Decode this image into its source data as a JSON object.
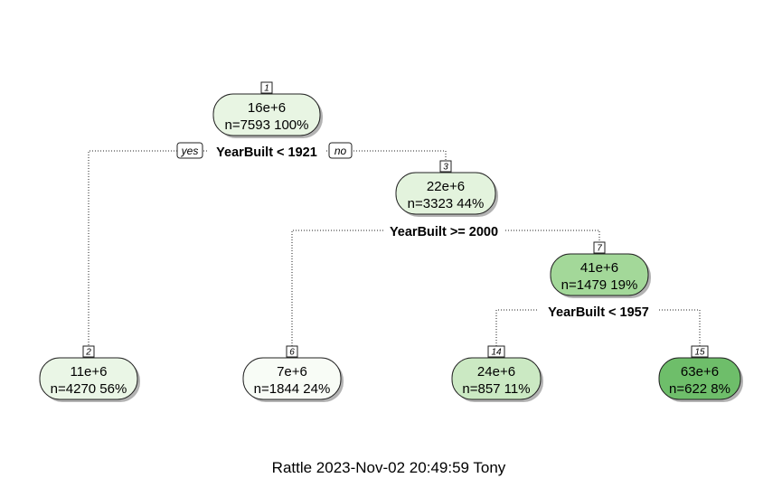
{
  "tree": {
    "nodes": [
      {
        "id": "1",
        "value": "16e+6",
        "n": "n=7593",
        "pct": "100%",
        "fill": "#e8f5e3"
      },
      {
        "id": "3",
        "value": "22e+6",
        "n": "n=3323",
        "pct": "44%",
        "fill": "#e3f3dd"
      },
      {
        "id": "7",
        "value": "41e+6",
        "n": "n=1479",
        "pct": "19%",
        "fill": "#a3d899"
      },
      {
        "id": "2",
        "value": "11e+6",
        "n": "n=4270",
        "pct": "56%",
        "fill": "#eaf6e6"
      },
      {
        "id": "6",
        "value": "7e+6",
        "n": "n=1844",
        "pct": "24%",
        "fill": "#f8fcf6"
      },
      {
        "id": "14",
        "value": "24e+6",
        "n": "n=857",
        "pct": "11%",
        "fill": "#cbe9c3"
      },
      {
        "id": "15",
        "value": "63e+6",
        "n": "n=622",
        "pct": "8%",
        "fill": "#6ebe6a"
      }
    ],
    "splits": [
      {
        "node": "1",
        "label": "YearBuilt < 1921"
      },
      {
        "node": "3",
        "label": "YearBuilt >= 2000"
      },
      {
        "node": "7",
        "label": "YearBuilt < 1957"
      }
    ],
    "yes_label": "yes",
    "no_label": "no"
  },
  "caption": "Rattle 2023-Nov-02 20:49:59 Tony"
}
